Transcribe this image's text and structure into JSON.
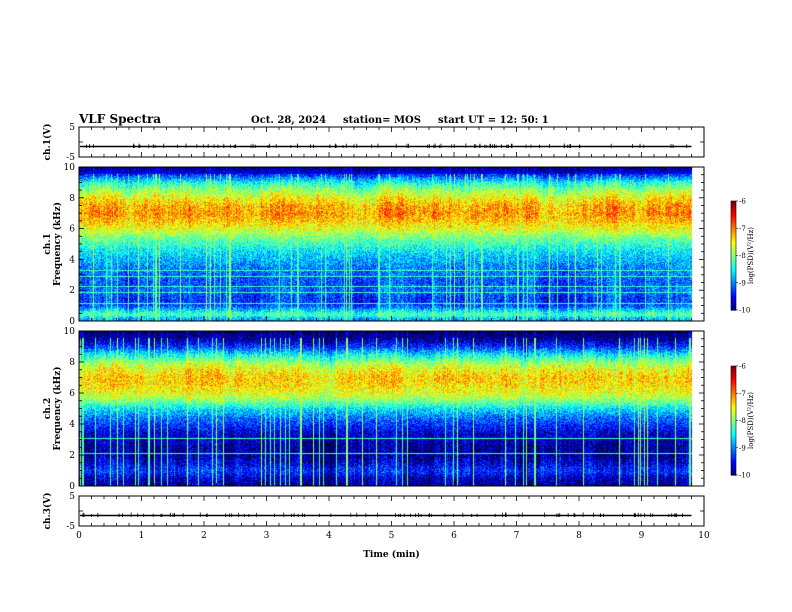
{
  "header": {
    "title": "VLF Spectra",
    "date": "Oct. 28, 2024",
    "station": "station= MOS",
    "start": "start  UT =   12: 50: 1"
  },
  "chart_data": [
    {
      "type": "line",
      "name": "ch1-waveform",
      "ylabel": "ch.1(V)",
      "ylim": [
        -5,
        5
      ],
      "yticks": [
        "5",
        "-5"
      ],
      "trace_level": -1.5,
      "xlim": [
        0,
        10
      ],
      "xlabel": ""
    },
    {
      "type": "heatmap",
      "name": "ch1-spectrogram",
      "ylabel": "ch.1\nFrequency (kHz)",
      "ylim": [
        0,
        10
      ],
      "yticks": [
        "0",
        "2",
        "4",
        "6",
        "8",
        "10"
      ],
      "xlim": [
        0,
        10
      ],
      "data_end_min": 9.8,
      "colorbar": {
        "label": "log(PSD)(V²/Hz)",
        "range": [
          -10,
          -6
        ],
        "ticks": [
          "-6",
          "-7",
          "-8",
          "-9",
          "-10"
        ]
      },
      "profile_freq_khz": [
        0,
        0.5,
        1,
        1.5,
        2,
        2.5,
        3,
        3.5,
        4,
        4.5,
        5,
        5.5,
        6,
        6.5,
        7,
        7.5,
        8,
        8.5,
        9,
        9.5,
        10
      ],
      "profile_log_psd": [
        -9.0,
        -8.2,
        -9.2,
        -9.3,
        -9.1,
        -9.2,
        -9.1,
        -9.0,
        -8.8,
        -8.6,
        -8.3,
        -8.0,
        -7.6,
        -7.3,
        -7.1,
        -7.2,
        -7.5,
        -7.9,
        -8.4,
        -9.3,
        -9.9
      ],
      "emission_lines_khz": [
        0.4,
        1.2,
        1.9,
        2.3,
        2.9,
        3.3
      ]
    },
    {
      "type": "heatmap",
      "name": "ch2-spectrogram",
      "ylabel": "ch.2\nFrequency (kHz)",
      "ylim": [
        0,
        10
      ],
      "yticks": [
        "0",
        "2",
        "4",
        "6",
        "8",
        "10"
      ],
      "xlim": [
        0,
        10
      ],
      "data_end_min": 9.8,
      "colorbar": {
        "label": "log(PSD)(V²/Hz)",
        "range": [
          -10,
          -6
        ],
        "ticks": [
          "-6",
          "-7",
          "-8",
          "-9",
          "-10"
        ]
      },
      "profile_freq_khz": [
        0,
        0.5,
        1,
        1.5,
        2,
        2.5,
        3,
        3.5,
        4,
        4.5,
        5,
        5.5,
        6,
        6.5,
        7,
        7.5,
        8,
        8.5,
        9,
        9.5,
        10
      ],
      "profile_log_psd": [
        -9.8,
        -9.7,
        -9.3,
        -9.6,
        -9.8,
        -9.8,
        -9.7,
        -9.6,
        -9.3,
        -9.0,
        -8.6,
        -8.0,
        -7.6,
        -7.4,
        -7.3,
        -7.5,
        -7.9,
        -8.5,
        -9.3,
        -9.8,
        -10.0
      ],
      "emission_lines_khz": [
        2.1,
        3.1
      ]
    },
    {
      "type": "line",
      "name": "ch3-waveform",
      "ylabel": "ch.3(V)",
      "ylim": [
        -5,
        5
      ],
      "yticks": [
        "5",
        "-5"
      ],
      "trace_level": -1.5,
      "xlim": [
        0,
        10
      ],
      "xlabel": "Time (min)",
      "xticks": [
        "0",
        "1",
        "2",
        "3",
        "4",
        "5",
        "6",
        "7",
        "8",
        "9",
        "10"
      ]
    }
  ]
}
